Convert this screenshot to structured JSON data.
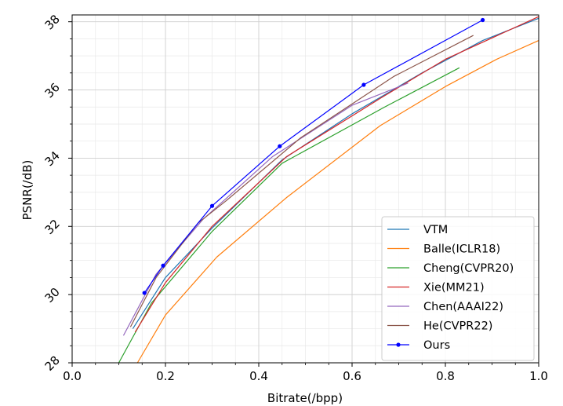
{
  "chart_data": {
    "type": "line",
    "title": "",
    "xlabel": "Bitrate(/bpp)",
    "ylabel": "PSNR(/dB)",
    "xlim": [
      0.0,
      1.0
    ],
    "ylim": [
      28,
      38.2
    ],
    "xticks": [
      "0.0",
      "0.2",
      "0.4",
      "0.6",
      "0.8",
      "1.0"
    ],
    "yticks": [
      "28",
      "30",
      "32",
      "34",
      "36",
      "38"
    ],
    "grid": true,
    "legend_position": "lower-right",
    "series": [
      {
        "name": "VTM",
        "color": "#1f77b4",
        "marker": "none",
        "x": [
          0.13,
          0.2,
          0.3,
          0.45,
          0.6,
          0.75,
          0.88,
          1.0
        ],
        "y": [
          29.0,
          30.5,
          31.95,
          33.95,
          35.3,
          36.5,
          37.45,
          38.1
        ]
      },
      {
        "name": "Balle(ICLR18)",
        "color": "#ff7f0e",
        "marker": "none",
        "x": [
          0.14,
          0.2,
          0.31,
          0.46,
          0.66,
          0.8,
          0.91,
          1.0
        ],
        "y": [
          28.0,
          29.4,
          31.1,
          32.85,
          34.95,
          36.1,
          36.9,
          37.45
        ]
      },
      {
        "name": "Cheng(CVPR20)",
        "color": "#2ca02c",
        "marker": "none",
        "x": [
          0.1,
          0.17,
          0.3,
          0.45,
          0.67,
          0.83
        ],
        "y": [
          28.0,
          29.75,
          31.85,
          33.85,
          35.5,
          36.65
        ]
      },
      {
        "name": "Xie(MM21)",
        "color": "#d62728",
        "marker": "none",
        "x": [
          0.135,
          0.2,
          0.3,
          0.46,
          0.66,
          0.8,
          1.0
        ],
        "y": [
          28.9,
          30.35,
          32.0,
          34.05,
          35.75,
          36.9,
          38.15
        ]
      },
      {
        "name": "Chen(AAAI22)",
        "color": "#9467bd",
        "marker": "none",
        "x": [
          0.11,
          0.18,
          0.28,
          0.43,
          0.6,
          0.72
        ],
        "y": [
          28.8,
          30.6,
          32.2,
          34.05,
          35.55,
          36.2
        ]
      },
      {
        "name": "He(CVPR22)",
        "color": "#8c564b",
        "marker": "none",
        "x": [
          0.125,
          0.18,
          0.27,
          0.33,
          0.49,
          0.69,
          0.86
        ],
        "y": [
          29.05,
          30.5,
          32.1,
          32.75,
          34.6,
          36.4,
          37.6
        ]
      },
      {
        "name": "Ours",
        "color": "#0000ff",
        "marker": "circle",
        "x": [
          0.155,
          0.195,
          0.3,
          0.445,
          0.625,
          0.88
        ],
        "y": [
          30.05,
          30.85,
          32.6,
          34.35,
          36.15,
          38.05
        ]
      }
    ]
  }
}
